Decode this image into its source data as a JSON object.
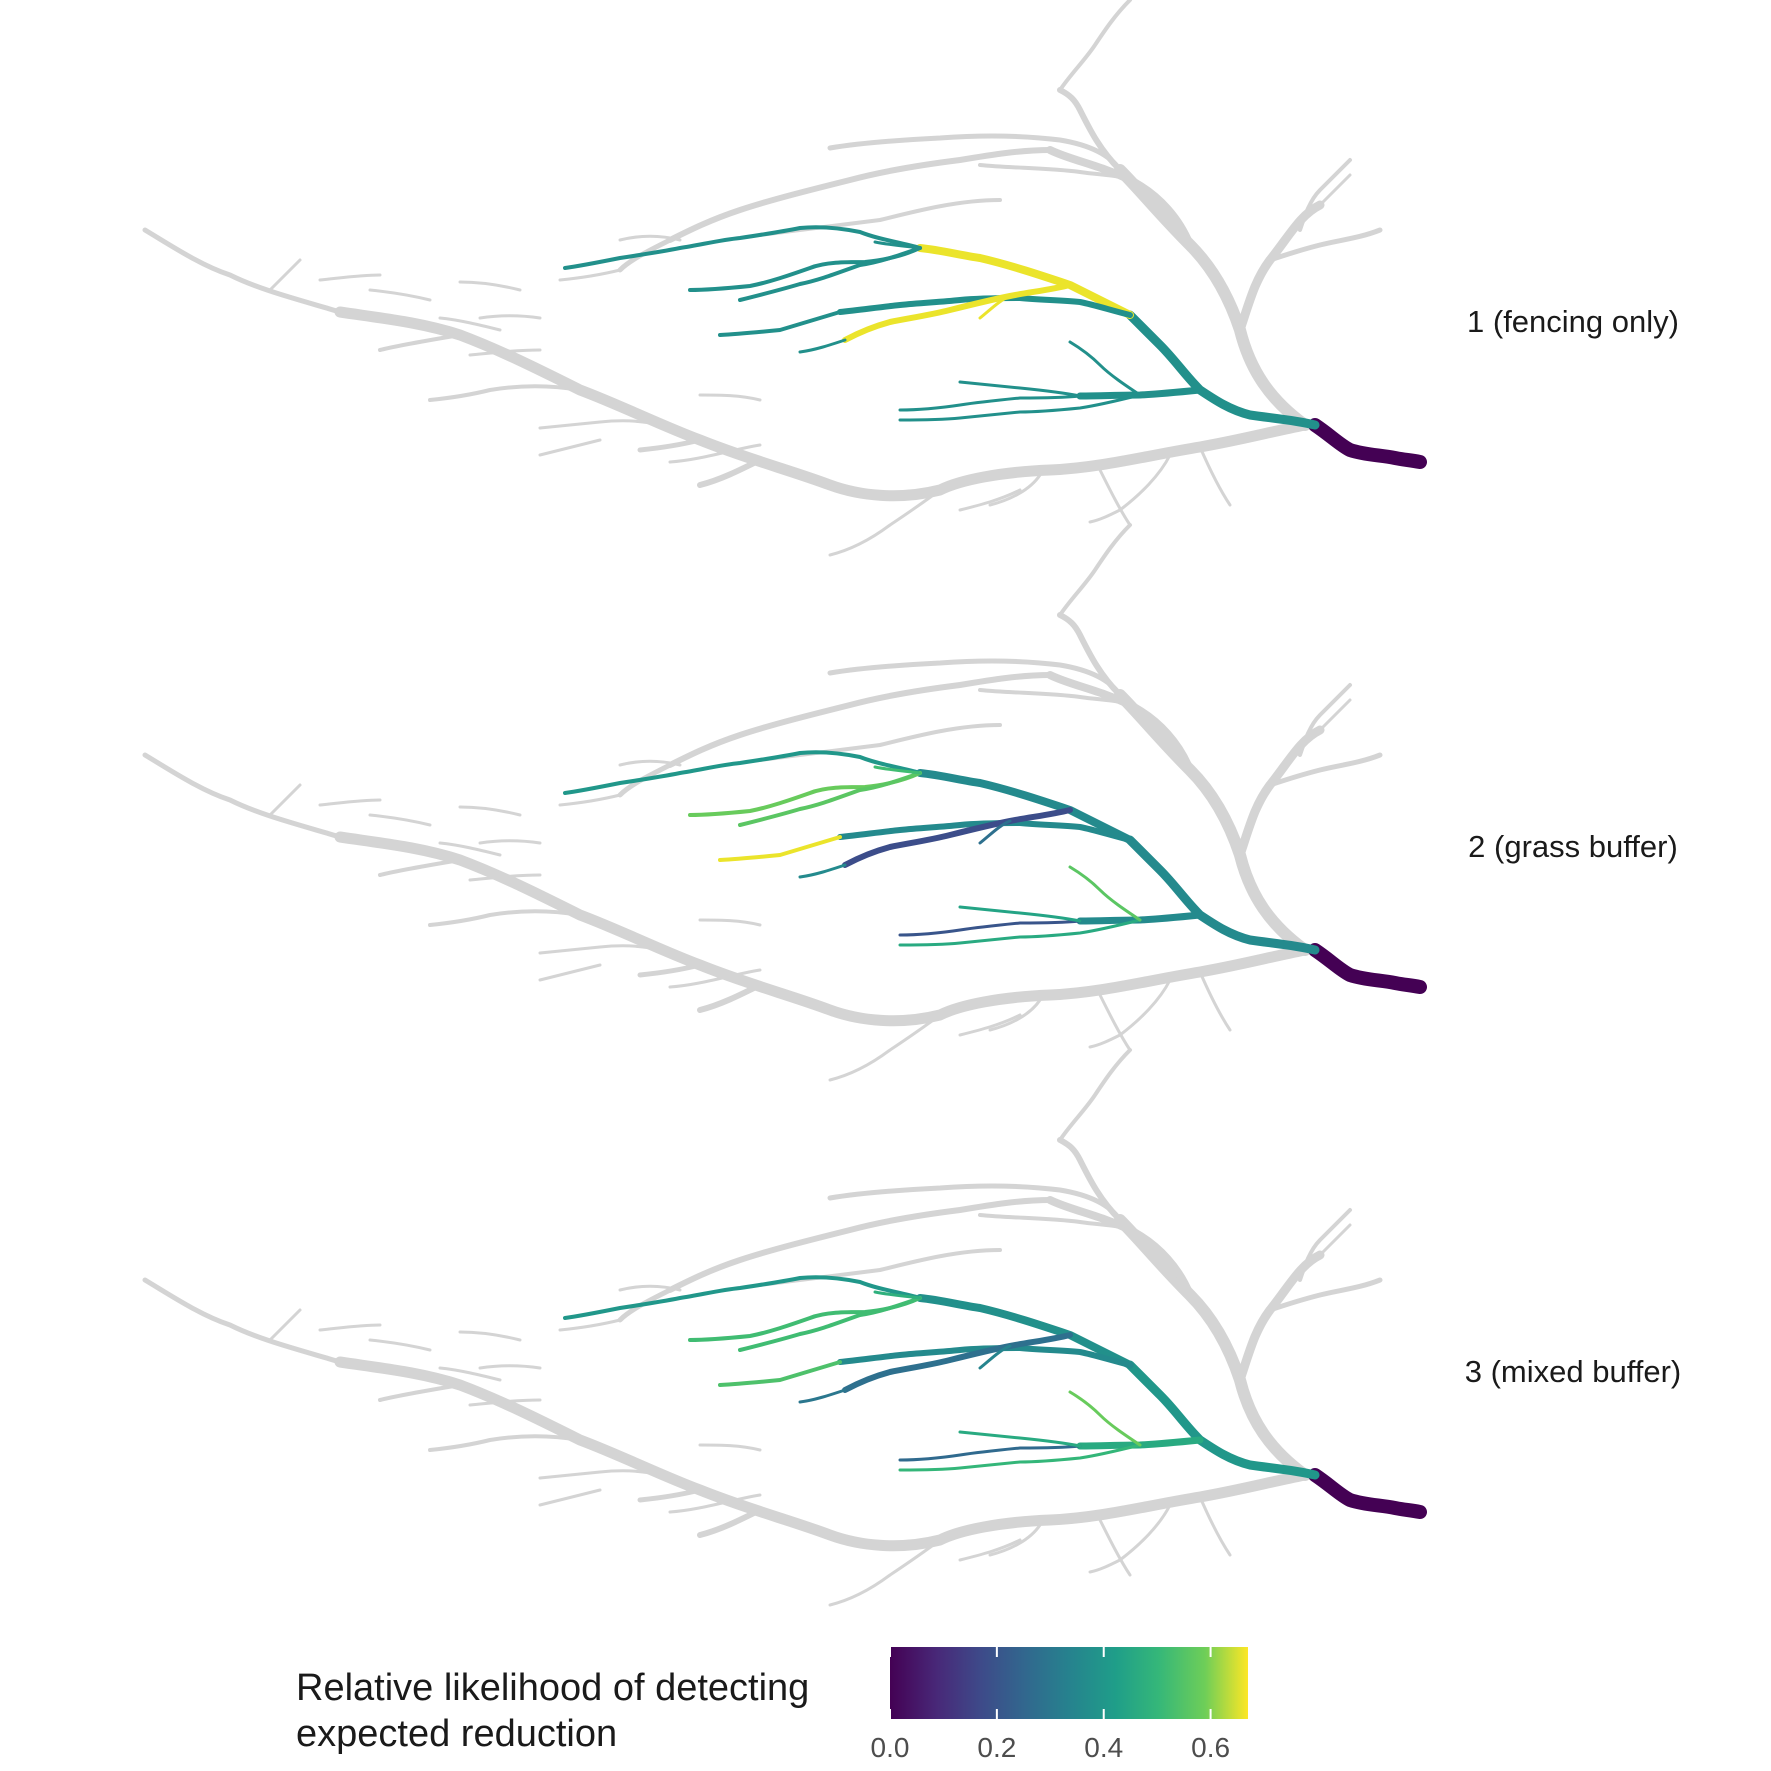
{
  "chart_data": {
    "type": "map",
    "description_source": "faceted stream-network maps",
    "base_network_color": "#d4d4d4",
    "panels": [
      {
        "label": "1 (fencing only)",
        "segments": [
          {
            "id": "outlet",
            "value": 0.0
          },
          {
            "id": "main-lower",
            "value": 0.38
          },
          {
            "id": "main-upper",
            "value": 0.66
          },
          {
            "id": "upper-west-1",
            "value": 0.38
          },
          {
            "id": "upper-west-2",
            "value": 0.38
          },
          {
            "id": "upper-west-3",
            "value": 0.38
          },
          {
            "id": "upper-west-4",
            "value": 0.38
          },
          {
            "id": "mid-trunk",
            "value": 0.38
          },
          {
            "id": "mid-west",
            "value": 0.38
          },
          {
            "id": "yellow-branch-a",
            "value": 0.66
          },
          {
            "id": "yellow-branch-b",
            "value": 0.66
          },
          {
            "id": "short-west",
            "value": 0.38
          },
          {
            "id": "lower-trunk",
            "value": 0.38
          },
          {
            "id": "lower-a",
            "value": 0.38
          },
          {
            "id": "lower-b",
            "value": 0.38
          },
          {
            "id": "lower-c",
            "value": 0.38
          },
          {
            "id": "lower-d",
            "value": 0.38
          }
        ]
      },
      {
        "label": "2 (grass buffer)",
        "segments": [
          {
            "id": "outlet",
            "value": 0.0
          },
          {
            "id": "main-lower",
            "value": 0.36
          },
          {
            "id": "main-upper",
            "value": 0.36
          },
          {
            "id": "upper-west-1",
            "value": 0.4
          },
          {
            "id": "upper-west-2",
            "value": 0.58
          },
          {
            "id": "upper-west-3",
            "value": 0.56
          },
          {
            "id": "upper-west-4",
            "value": 0.52
          },
          {
            "id": "mid-trunk",
            "value": 0.36
          },
          {
            "id": "mid-west",
            "value": 0.66
          },
          {
            "id": "yellow-branch-a",
            "value": 0.18
          },
          {
            "id": "yellow-branch-b",
            "value": 0.28
          },
          {
            "id": "short-west",
            "value": 0.36
          },
          {
            "id": "lower-trunk",
            "value": 0.36
          },
          {
            "id": "lower-a",
            "value": 0.2
          },
          {
            "id": "lower-b",
            "value": 0.44
          },
          {
            "id": "lower-c",
            "value": 0.46
          },
          {
            "id": "lower-d",
            "value": 0.56
          }
        ]
      },
      {
        "label": "3 (mixed buffer)",
        "segments": [
          {
            "id": "outlet",
            "value": 0.0
          },
          {
            "id": "main-lower",
            "value": 0.4
          },
          {
            "id": "main-upper",
            "value": 0.38
          },
          {
            "id": "upper-west-1",
            "value": 0.4
          },
          {
            "id": "upper-west-2",
            "value": 0.52
          },
          {
            "id": "upper-west-3",
            "value": 0.52
          },
          {
            "id": "upper-west-4",
            "value": 0.48
          },
          {
            "id": "mid-trunk",
            "value": 0.36
          },
          {
            "id": "mid-west",
            "value": 0.54
          },
          {
            "id": "yellow-branch-a",
            "value": 0.28
          },
          {
            "id": "yellow-branch-b",
            "value": 0.34
          },
          {
            "id": "short-west",
            "value": 0.3
          },
          {
            "id": "lower-trunk",
            "value": 0.46
          },
          {
            "id": "lower-a",
            "value": 0.26
          },
          {
            "id": "lower-b",
            "value": 0.46
          },
          {
            "id": "lower-c",
            "value": 0.5
          },
          {
            "id": "lower-d",
            "value": 0.58
          }
        ]
      }
    ],
    "legend": {
      "title_line1": "Relative likelihood of detecting",
      "title_line2": "expected reduction",
      "range": [
        0.0,
        0.67
      ],
      "colormap": "viridis",
      "ticks": [
        0.0,
        0.2,
        0.4,
        0.6
      ],
      "tick_labels": [
        "0.0",
        "0.2",
        "0.4",
        "0.6"
      ]
    }
  }
}
